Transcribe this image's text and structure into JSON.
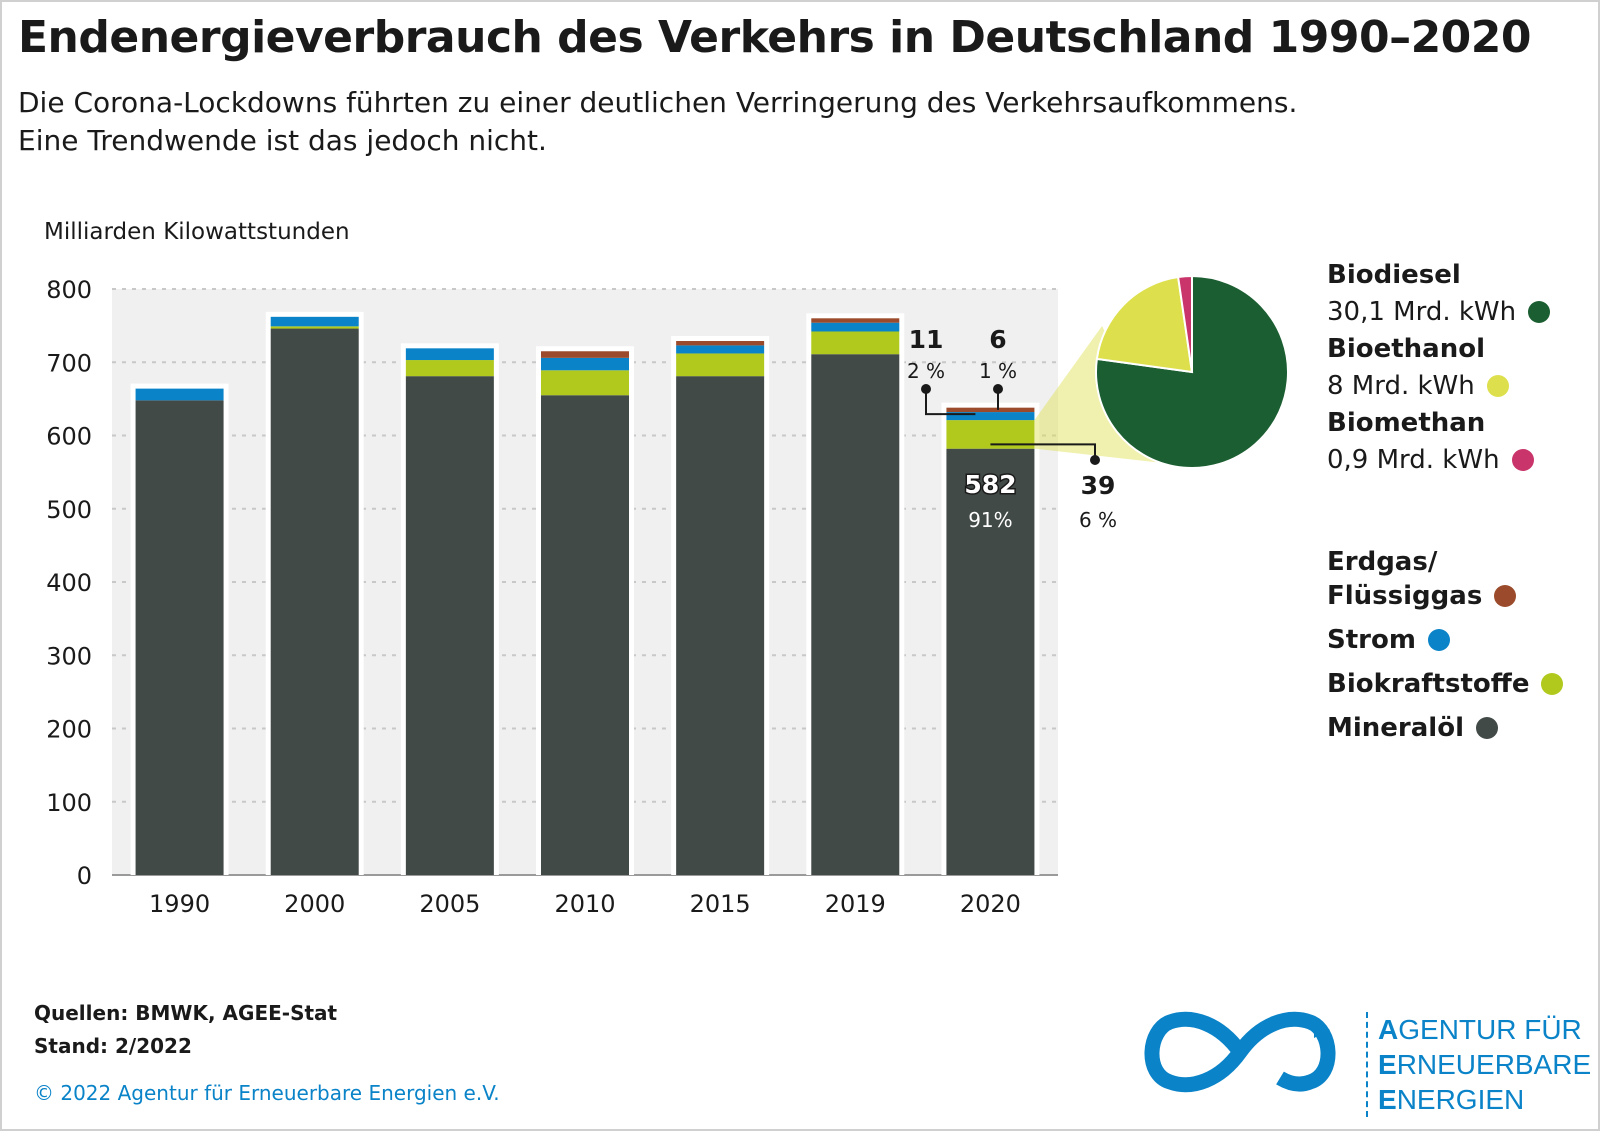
{
  "title": "Endenergieverbrauch des Verkehrs in Deutschland 1990–2020",
  "subtitle": {
    "line1": "Die Corona-Lockdowns führten zu einer deutlichen Verringerung des Verkehrsaufkommens.",
    "line2": "Eine Trendwende ist das jedoch nicht."
  },
  "chart_data": [
    {
      "type": "bar",
      "stacked": true,
      "ylabel": "Milliarden Kilowattstunden",
      "ylim": [
        0,
        800
      ],
      "yticks": [
        "0",
        "100",
        "200",
        "300",
        "400",
        "500",
        "600",
        "700",
        "800"
      ],
      "grid": true,
      "legend_position": "right",
      "categories": [
        "1990",
        "2000",
        "2005",
        "2010",
        "2015",
        "2019",
        "2020"
      ],
      "series": [
        {
          "name": "Mineralöl",
          "color": "#414a46",
          "values": [
            648,
            746,
            681,
            655,
            681,
            711,
            582
          ]
        },
        {
          "name": "Biokraftstoffe",
          "color": "#b0c91c",
          "values": [
            0,
            3,
            22,
            34,
            31,
            31,
            39
          ]
        },
        {
          "name": "Strom",
          "color": "#0a83c8",
          "values": [
            16,
            13,
            16,
            17,
            11,
            12,
            11
          ]
        },
        {
          "name": "Erdgas/ Flüssiggas",
          "color": "#9b4b2b",
          "values": [
            0,
            0,
            0,
            9,
            6,
            6,
            6
          ]
        }
      ],
      "annotations": [
        {
          "label": "11",
          "pct": "2 %",
          "series": "Strom",
          "category": "2020"
        },
        {
          "label": "6",
          "pct": "1 %",
          "series": "Erdgas/ Flüssiggas",
          "category": "2020"
        },
        {
          "label": "582",
          "pct": "91%",
          "series": "Mineralöl",
          "category": "2020"
        },
        {
          "label": "39",
          "pct": "6 %",
          "series": "Biokraftstoffe",
          "category": "2020"
        }
      ]
    },
    {
      "type": "pie",
      "slices": [
        {
          "name": "Biodiesel",
          "value": 30.1,
          "label": "30,1 Mrd. kWh",
          "color": "#1b5e31"
        },
        {
          "name": "Bioethanol",
          "value": 8,
          "label": "8 Mrd. kWh",
          "color": "#dde04c"
        },
        {
          "name": "Biomethan",
          "value": 0.9,
          "label": "0,9 Mrd. kWh",
          "color": "#c9356a"
        }
      ]
    }
  ],
  "legend_sources": [
    {
      "name": "Erdgas/",
      "name2": "Flüssiggas",
      "color": "#9b4b2b"
    },
    {
      "name": "Strom",
      "color": "#0a83c8"
    },
    {
      "name": "Biokraftstoffe",
      "color": "#b0c91c"
    },
    {
      "name": "Mineralöl",
      "color": "#414a46"
    }
  ],
  "footer": {
    "sources": "Quellen: BMWK, AGEE-Stat",
    "date": "Stand: 2/2022",
    "copyright": "© 2022 Agentur für Erneuerbare Energien e.V."
  },
  "logo": {
    "line1_first": "A",
    "line1_rest": "GENTUR FÜR",
    "line2_first": "E",
    "line2_rest": "RNEUERBARE",
    "line3_first": "E",
    "line3_rest": "NERGIEN",
    "color": "#0a83c8"
  }
}
